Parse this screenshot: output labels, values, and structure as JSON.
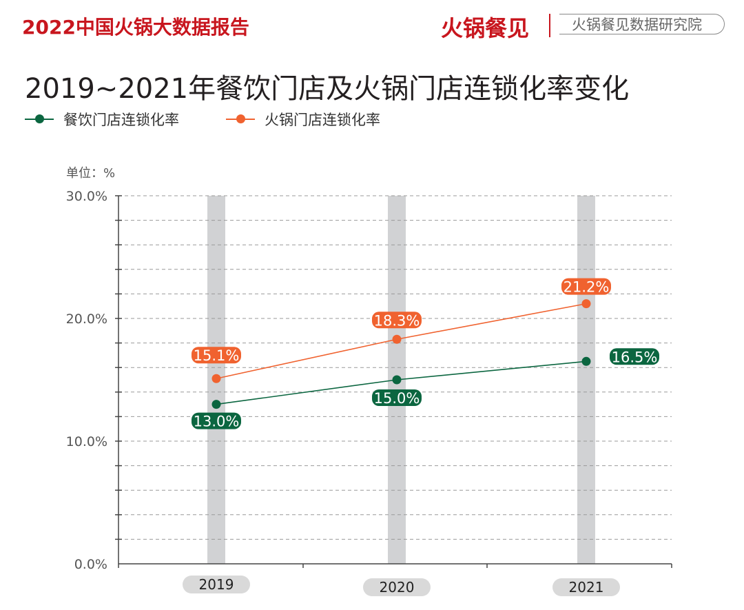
{
  "header": {
    "report_title": "2022中国火锅大数据报告",
    "brand": "火锅餐见",
    "institute": "火锅餐见数据研究院"
  },
  "chart_data": {
    "type": "line",
    "title": "2019~2021年餐饮门店及火锅门店连锁化率变化",
    "unit_label": "单位：%",
    "categories": [
      "2019",
      "2020",
      "2021"
    ],
    "y_ticks": [
      "0.0%",
      "10.0%",
      "20.0%",
      "30.0%"
    ],
    "ylim": [
      0,
      30
    ],
    "grid": true,
    "legend_position": "top-left",
    "series": [
      {
        "name": "餐饮门店连锁化率",
        "values": [
          13.0,
          15.0,
          16.5
        ],
        "labels": [
          "13.0%",
          "15.0%",
          "16.5%"
        ],
        "color": "#0b6640"
      },
      {
        "name": "火锅门店连锁化率",
        "values": [
          15.1,
          18.3,
          21.2
        ],
        "labels": [
          "15.1%",
          "18.3%",
          "21.2%"
        ],
        "color": "#f0622f"
      }
    ]
  }
}
